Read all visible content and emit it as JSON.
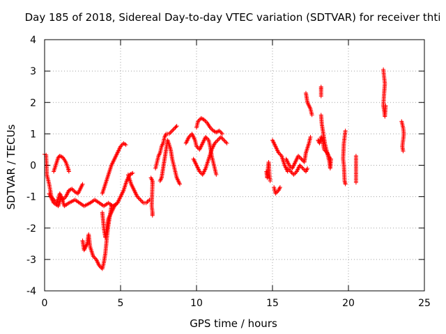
{
  "chart_data": {
    "type": "scatter",
    "title": "Day 185 of 2018, Sidereal Day-to-day VTEC variation (SDTVAR) for receiver thti",
    "xlabel": "GPS time / hours",
    "ylabel": "SDTVAR / TECUs",
    "xlim": [
      0,
      25
    ],
    "ylim": [
      -4,
      4
    ],
    "x_ticks": [
      0,
      5,
      10,
      15,
      20,
      25
    ],
    "y_ticks": [
      -4,
      -3,
      -2,
      -1,
      0,
      1,
      2,
      3,
      4
    ],
    "x_tick_labels": [
      "0",
      "5",
      "10",
      "15",
      "20",
      "25"
    ],
    "y_tick_labels": [
      "-4",
      "-3",
      "-2",
      "-1",
      "0",
      "1",
      "2",
      "3",
      "4"
    ],
    "grid": true,
    "marker": "+",
    "color": "#ff0000",
    "series": [
      {
        "name": "SDTVAR",
        "segments": [
          [
            [
              0.0,
              0.35
            ],
            [
              0.1,
              0.33
            ],
            [
              0.15,
              -0.3
            ],
            [
              0.3,
              -0.6
            ],
            [
              0.45,
              -1.0
            ],
            [
              0.6,
              -1.1
            ],
            [
              0.8,
              -1.2
            ],
            [
              1.0,
              -0.9
            ],
            [
              1.2,
              -1.1
            ],
            [
              1.4,
              -1.0
            ],
            [
              1.6,
              -0.8
            ],
            [
              1.8,
              -0.75
            ],
            [
              2.0,
              -0.85
            ],
            [
              2.2,
              -0.9
            ],
            [
              2.4,
              -0.7
            ],
            [
              2.5,
              -0.6
            ]
          ],
          [
            [
              0.6,
              -0.2
            ],
            [
              0.8,
              0.1
            ],
            [
              0.9,
              0.25
            ],
            [
              1.0,
              0.3
            ],
            [
              1.2,
              0.25
            ],
            [
              1.4,
              0.1
            ],
            [
              1.55,
              -0.1
            ],
            [
              1.6,
              -0.2
            ]
          ],
          [
            [
              0.3,
              -0.9
            ],
            [
              0.6,
              -1.2
            ],
            [
              0.9,
              -1.3
            ],
            [
              1.1,
              -1.0
            ],
            [
              1.3,
              -1.3
            ],
            [
              1.6,
              -1.2
            ],
            [
              2.0,
              -1.1
            ],
            [
              2.3,
              -1.2
            ],
            [
              2.6,
              -1.3
            ],
            [
              3.0,
              -1.2
            ],
            [
              3.3,
              -1.1
            ],
            [
              3.6,
              -1.2
            ],
            [
              3.9,
              -1.3
            ],
            [
              4.2,
              -1.2
            ],
            [
              4.5,
              -1.3
            ],
            [
              4.8,
              -1.2
            ]
          ],
          [
            [
              2.5,
              -2.4
            ],
            [
              2.6,
              -2.7
            ],
            [
              2.8,
              -2.5
            ],
            [
              2.9,
              -2.2
            ],
            [
              3.0,
              -2.6
            ],
            [
              3.2,
              -2.9
            ],
            [
              3.4,
              -3.0
            ],
            [
              3.6,
              -3.2
            ],
            [
              3.8,
              -3.3
            ],
            [
              3.9,
              -3.1
            ],
            [
              4.0,
              -2.8
            ],
            [
              4.1,
              -2.3
            ],
            [
              4.2,
              -1.9
            ],
            [
              4.3,
              -1.6
            ],
            [
              4.4,
              -1.3
            ]
          ],
          [
            [
              3.8,
              -1.5
            ],
            [
              3.9,
              -2.0
            ],
            [
              4.0,
              -2.3
            ],
            [
              4.1,
              -2.0
            ],
            [
              4.2,
              -1.7
            ],
            [
              4.4,
              -1.5
            ],
            [
              4.6,
              -1.3
            ],
            [
              4.8,
              -1.2
            ],
            [
              5.0,
              -1.0
            ],
            [
              5.2,
              -0.8
            ],
            [
              5.4,
              -0.5
            ],
            [
              5.6,
              -0.3
            ],
            [
              5.8,
              -0.25
            ]
          ],
          [
            [
              3.8,
              -0.9
            ],
            [
              4.0,
              -0.6
            ],
            [
              4.2,
              -0.3
            ],
            [
              4.4,
              0.0
            ],
            [
              4.6,
              0.2
            ],
            [
              4.8,
              0.4
            ],
            [
              5.0,
              0.6
            ],
            [
              5.2,
              0.7
            ],
            [
              5.35,
              0.65
            ]
          ],
          [
            [
              5.5,
              -0.3
            ],
            [
              5.7,
              -0.6
            ],
            [
              5.9,
              -0.8
            ],
            [
              6.1,
              -1.0
            ],
            [
              6.3,
              -1.1
            ],
            [
              6.5,
              -1.2
            ],
            [
              6.7,
              -1.2
            ],
            [
              6.9,
              -1.1
            ]
          ],
          [
            [
              7.0,
              -0.4
            ],
            [
              7.1,
              -0.5
            ],
            [
              7.1,
              -0.6
            ],
            [
              7.05,
              -1.3
            ],
            [
              7.1,
              -1.5
            ],
            [
              7.1,
              -1.6
            ]
          ],
          [
            [
              7.3,
              -0.1
            ],
            [
              7.4,
              0.1
            ],
            [
              7.5,
              0.3
            ],
            [
              7.6,
              0.4
            ],
            [
              7.7,
              0.6
            ],
            [
              7.8,
              0.7
            ],
            [
              7.9,
              0.9
            ],
            [
              8.0,
              1.0
            ],
            [
              8.2,
              1.0
            ],
            [
              8.4,
              1.1
            ],
            [
              8.6,
              1.2
            ],
            [
              8.7,
              1.25
            ]
          ],
          [
            [
              7.6,
              -0.5
            ],
            [
              7.7,
              -0.4
            ],
            [
              7.8,
              -0.1
            ],
            [
              7.9,
              0.2
            ],
            [
              8.0,
              0.5
            ],
            [
              8.1,
              0.8
            ],
            [
              8.2,
              0.65
            ],
            [
              8.3,
              0.5
            ],
            [
              8.4,
              0.2
            ],
            [
              8.5,
              0.0
            ],
            [
              8.6,
              -0.2
            ],
            [
              8.7,
              -0.4
            ],
            [
              8.8,
              -0.5
            ],
            [
              8.9,
              -0.6
            ]
          ],
          [
            [
              9.3,
              0.7
            ],
            [
              9.5,
              0.9
            ],
            [
              9.7,
              1.0
            ],
            [
              9.9,
              0.8
            ],
            [
              10.0,
              0.6
            ],
            [
              10.2,
              0.5
            ],
            [
              10.4,
              0.7
            ],
            [
              10.6,
              0.9
            ],
            [
              10.8,
              0.8
            ],
            [
              10.9,
              0.6
            ],
            [
              11.0,
              0.3
            ],
            [
              11.1,
              0.1
            ],
            [
              11.2,
              -0.1
            ],
            [
              11.3,
              -0.3
            ]
          ],
          [
            [
              9.8,
              0.2
            ],
            [
              10.0,
              0.0
            ],
            [
              10.2,
              -0.2
            ],
            [
              10.4,
              -0.3
            ],
            [
              10.6,
              -0.1
            ],
            [
              10.8,
              0.2
            ],
            [
              11.0,
              0.5
            ],
            [
              11.2,
              0.7
            ],
            [
              11.4,
              0.8
            ],
            [
              11.6,
              0.9
            ],
            [
              11.8,
              0.8
            ],
            [
              12.0,
              0.7
            ]
          ],
          [
            [
              10.0,
              1.2
            ],
            [
              10.1,
              1.4
            ],
            [
              10.3,
              1.5
            ],
            [
              10.5,
              1.45
            ],
            [
              10.7,
              1.35
            ],
            [
              10.9,
              1.2
            ],
            [
              11.1,
              1.1
            ],
            [
              11.3,
              1.05
            ],
            [
              11.5,
              1.1
            ],
            [
              11.7,
              1.0
            ]
          ],
          [
            [
              14.6,
              -0.2
            ],
            [
              14.65,
              -0.4
            ],
            [
              14.7,
              -0.1
            ],
            [
              14.75,
              0.1
            ],
            [
              14.8,
              -0.3
            ],
            [
              14.85,
              -0.5
            ]
          ],
          [
            [
              15.0,
              0.8
            ],
            [
              15.2,
              0.6
            ],
            [
              15.4,
              0.4
            ],
            [
              15.6,
              0.3
            ],
            [
              15.8,
              0.0
            ],
            [
              16.0,
              -0.2
            ]
          ],
          [
            [
              15.1,
              -0.7
            ],
            [
              15.2,
              -0.9
            ],
            [
              15.4,
              -0.8
            ],
            [
              15.5,
              -0.7
            ]
          ],
          [
            [
              15.9,
              0.2
            ],
            [
              16.1,
              0.0
            ],
            [
              16.3,
              -0.1
            ],
            [
              16.5,
              0.1
            ],
            [
              16.7,
              0.3
            ],
            [
              16.9,
              0.2
            ],
            [
              17.1,
              0.1
            ],
            [
              17.2,
              0.4
            ],
            [
              17.4,
              0.7
            ],
            [
              17.5,
              0.9
            ]
          ],
          [
            [
              16.0,
              -0.1
            ],
            [
              16.2,
              -0.2
            ],
            [
              16.4,
              -0.3
            ],
            [
              16.6,
              -0.2
            ],
            [
              16.8,
              0.0
            ],
            [
              17.0,
              -0.1
            ],
            [
              17.2,
              -0.2
            ],
            [
              17.3,
              -0.1
            ]
          ],
          [
            [
              17.2,
              2.3
            ],
            [
              17.3,
              2.0
            ],
            [
              17.5,
              1.8
            ],
            [
              17.6,
              1.6
            ]
          ],
          [
            [
              18.2,
              2.5
            ],
            [
              18.2,
              2.4
            ],
            [
              18.2,
              2.2
            ]
          ],
          [
            [
              18.2,
              1.6
            ],
            [
              18.25,
              1.3
            ],
            [
              18.35,
              1.0
            ],
            [
              18.45,
              0.7
            ],
            [
              18.55,
              0.5
            ],
            [
              18.65,
              0.3
            ],
            [
              18.75,
              0.1
            ],
            [
              18.8,
              -0.1
            ],
            [
              18.85,
              0.2
            ]
          ],
          [
            [
              18.0,
              0.8
            ],
            [
              18.1,
              0.7
            ],
            [
              18.2,
              0.9
            ],
            [
              18.3,
              0.8
            ],
            [
              18.4,
              0.5
            ],
            [
              18.6,
              0.4
            ],
            [
              18.8,
              0.2
            ]
          ],
          [
            [
              19.8,
              1.1
            ],
            [
              19.75,
              0.9
            ],
            [
              19.7,
              0.7
            ],
            [
              19.65,
              0.2
            ],
            [
              19.7,
              0.0
            ],
            [
              19.75,
              -0.5
            ],
            [
              19.8,
              -0.6
            ]
          ],
          [
            [
              20.5,
              0.3
            ],
            [
              20.5,
              -0.55
            ]
          ],
          [
            [
              22.3,
              3.05
            ],
            [
              22.35,
              2.8
            ],
            [
              22.4,
              2.6
            ],
            [
              22.35,
              2.3
            ],
            [
              22.3,
              1.9
            ],
            [
              22.35,
              1.75
            ],
            [
              22.4,
              1.55
            ],
            [
              22.45,
              1.9
            ]
          ],
          [
            [
              23.5,
              1.4
            ],
            [
              23.6,
              1.2
            ],
            [
              23.65,
              1.0
            ],
            [
              23.6,
              0.8
            ],
            [
              23.55,
              0.6
            ],
            [
              23.6,
              0.45
            ]
          ]
        ]
      }
    ]
  }
}
